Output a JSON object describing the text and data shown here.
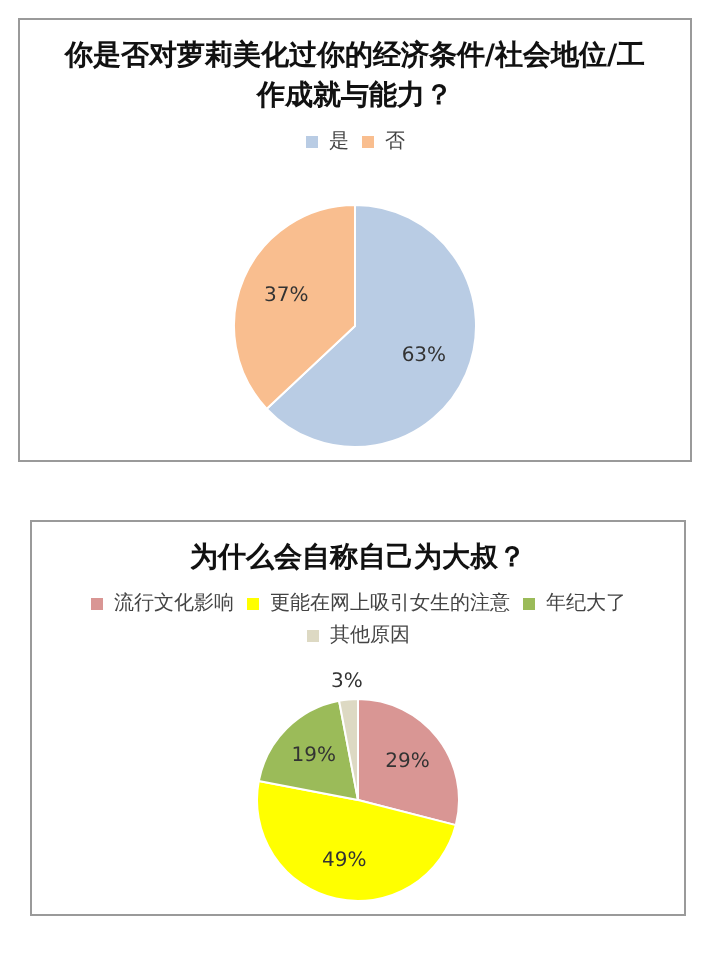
{
  "chart_data": [
    {
      "type": "pie",
      "title": "你是否对萝莉美化过你的经济条件/社会地位/工作成就与能力？",
      "categories": [
        "是",
        "否"
      ],
      "values": [
        63,
        37
      ],
      "colors": [
        "#b9cce4",
        "#f9be8f"
      ],
      "value_labels": [
        "63%",
        "37%"
      ],
      "legend": "top"
    },
    {
      "type": "pie",
      "title": "为什么会自称自己为大叔？",
      "categories": [
        "流行文化影响",
        "更能在网上吸引女生的注意",
        "年纪大了",
        "其他原因"
      ],
      "values": [
        29,
        49,
        19,
        3
      ],
      "colors": [
        "#d99694",
        "#ffff00",
        "#9bbb59",
        "#ddd9c3"
      ],
      "value_labels": [
        "29%",
        "49%",
        "19%",
        "3%"
      ],
      "legend": "top"
    }
  ]
}
